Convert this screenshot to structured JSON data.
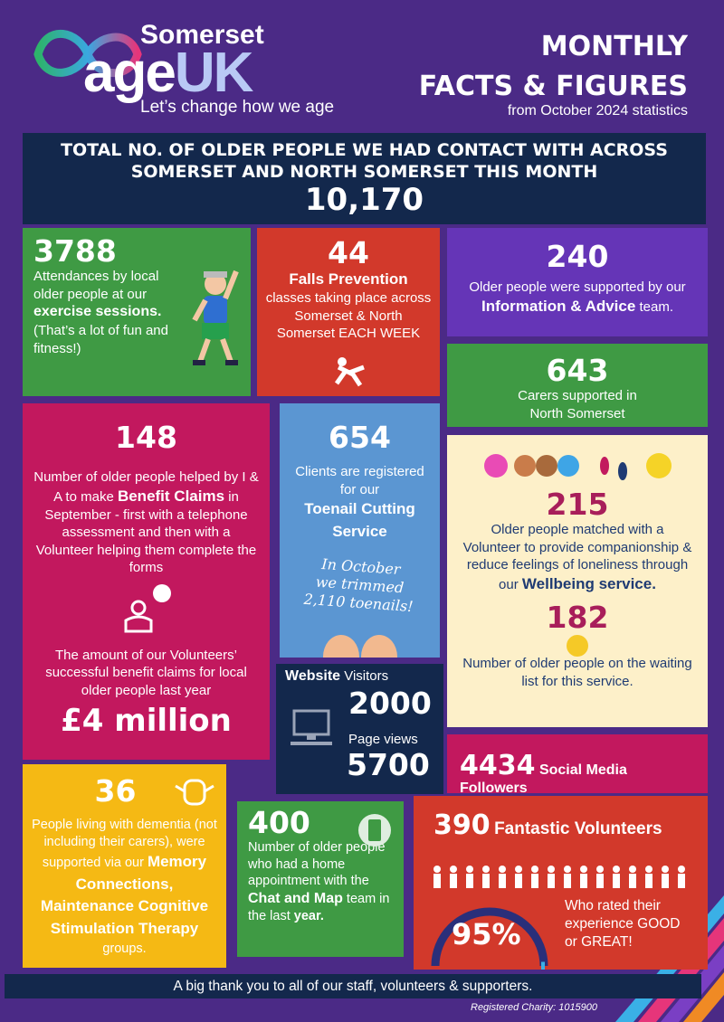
{
  "header": {
    "brand": "Somerset",
    "logo_age": "age",
    "logo_uk": "UK",
    "tagline": "Let’s change how we age",
    "title_line_1": "MONTHLY",
    "title_line_2": "FACTS & FIGURES",
    "subtitle": "from October 2024 statistics"
  },
  "banner": {
    "heading": "TOTAL NO. OF OLDER PEOPLE WE HAD CONTACT WITH ACROSS SOMERSET AND NORTH SOMERSET THIS MONTH",
    "number": "10,170"
  },
  "exercise": {
    "number": 3788,
    "text_1": "Attendances by local older people at our",
    "bold_1": "exercise sessions.",
    "text_2": "(That’s a lot of fun and fitness!)"
  },
  "falls": {
    "number": 44,
    "bold_1": "Falls Prevention",
    "text_1": "classes taking place across Somerset & North Somerset EACH WEEK"
  },
  "advice": {
    "number": 240,
    "text_1": "Older people were supported by our",
    "bold_1": "Information & Advice",
    "text_2": "team."
  },
  "carers": {
    "number": 643,
    "text_1": "Carers supported in North Somerset"
  },
  "benefits": {
    "number": 148,
    "text_1": "Number of older people helped by I & A to make",
    "bold_1": "Benefit Claims",
    "text_2": "in September - first with a telephone assessment and then with a Volunteer helping them complete the forms",
    "text_3": "The amount of our Volunteers’ successful benefit claims for local older people last year",
    "amount": "£4 million"
  },
  "toenail": {
    "number": 654,
    "text_1": "Clients are registered for our",
    "bold_1": "Toenail Cutting Service",
    "note_line_1": "In October",
    "note_line_2": "we trimmed",
    "note_line_3": "2,110 toenails!"
  },
  "wellbeing": {
    "number": 215,
    "text_1": "Older people matched with a Volunteer to provide companionship & reduce feelings of loneliness through our",
    "bold_1": "Wellbeing service.",
    "waiting_number": 182,
    "waiting_text": "Number of older people on the waiting list for this service."
  },
  "website": {
    "bold_1": "Website",
    "text_1": "Visitors",
    "visitors": 2000,
    "text_2": "Page views",
    "page_views": 5700
  },
  "social": {
    "number": 4434,
    "text_1": "Social Media Followers"
  },
  "dementia": {
    "number": 36,
    "text_1": "People living with dementia (not including their carers), were supported via our",
    "bold_1": "Memory Connections, Maintenance Cognitive Stimulation Therapy",
    "text_2": "groups."
  },
  "chat_map": {
    "number": 400,
    "text_1": "Number of older people who had a home appointment with the",
    "bold_1": "Chat and Map",
    "text_2": "team in the last",
    "bold_2": "year."
  },
  "volunteers": {
    "number": 390,
    "text_1": "Fantastic Volunteers",
    "percent": "95%",
    "text_2": "Who rated their experience GOOD or GREAT!"
  },
  "footer": {
    "thanks": "A big thank you to all of our staff, volunteers & supporters.",
    "charity": "Registered Charity: 1015900"
  }
}
